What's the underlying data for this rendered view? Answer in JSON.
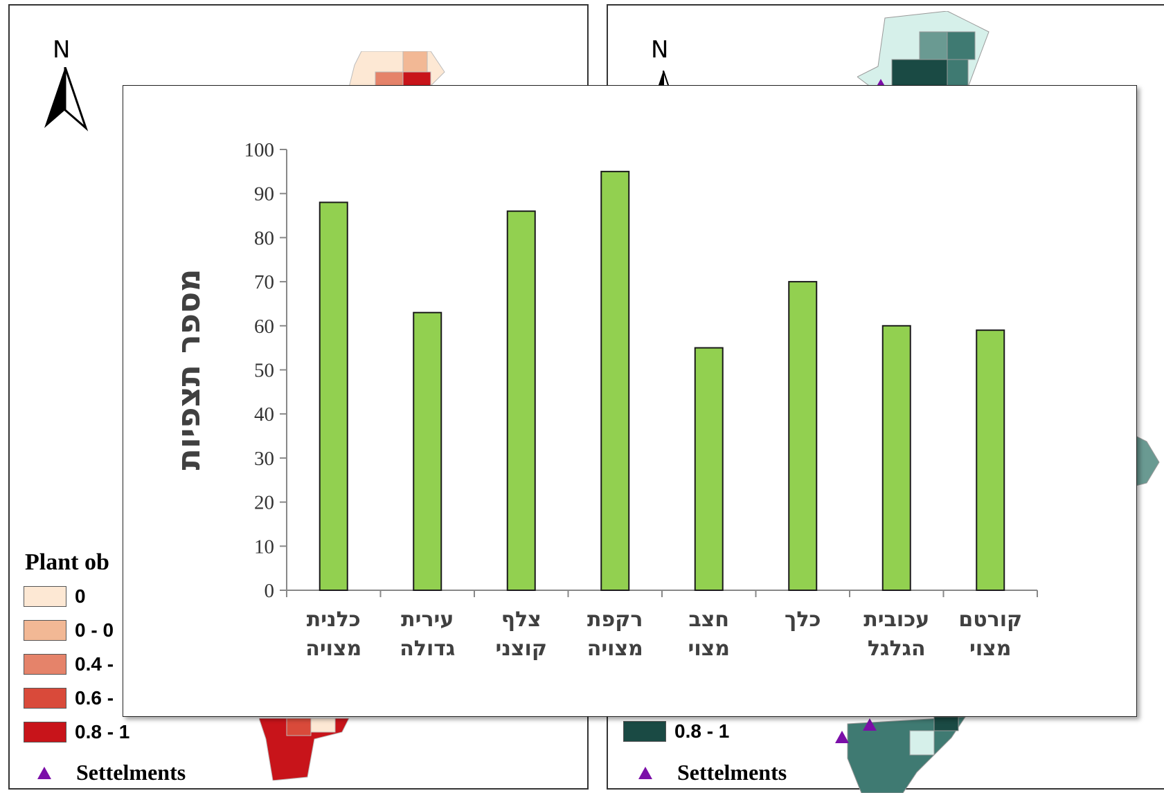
{
  "left_map": {
    "north": "N",
    "legend_title": "Plant ob",
    "legend_items": [
      {
        "label": "0",
        "color": "#fde8d4"
      },
      {
        "label": "0 - 0",
        "color": "#f2b895"
      },
      {
        "label": "0.4 -",
        "color": "#e5836a"
      },
      {
        "label": "0.6 -",
        "color": "#d94a3a"
      },
      {
        "label": "0.8 - 1",
        "color": "#c8141a"
      }
    ],
    "settlements_label": "Settelments"
  },
  "right_map": {
    "north": "N",
    "legend_items": [
      {
        "label": "0.8 - 1",
        "color": "#1a4a44"
      }
    ],
    "settlements_label": "Settelments"
  },
  "colors": {
    "bar_fill": "#92d050",
    "bar_stroke": "#1a1a1a",
    "settlement_marker": "#7b0fa8"
  },
  "chart_data": {
    "type": "bar",
    "ylabel": "מספר תצפיות",
    "xlabel": "",
    "ylim": [
      0,
      100
    ],
    "yticks": [
      "0",
      "10",
      "20",
      "30",
      "40",
      "50",
      "60",
      "70",
      "80",
      "90",
      "100"
    ],
    "categories": [
      [
        "כלנית",
        "מצויה"
      ],
      [
        "עירית",
        "גדולה"
      ],
      [
        "צלף",
        "קוצני"
      ],
      [
        "רקפת",
        "מצויה"
      ],
      [
        "חצב",
        "מצוי"
      ],
      [
        "כלך",
        ""
      ],
      [
        "עכובית",
        "הגלגל"
      ],
      [
        "קורטם",
        "מצוי"
      ]
    ],
    "values": [
      88,
      63,
      86,
      95,
      55,
      70,
      60,
      59
    ],
    "grid": false,
    "legend": "none"
  }
}
